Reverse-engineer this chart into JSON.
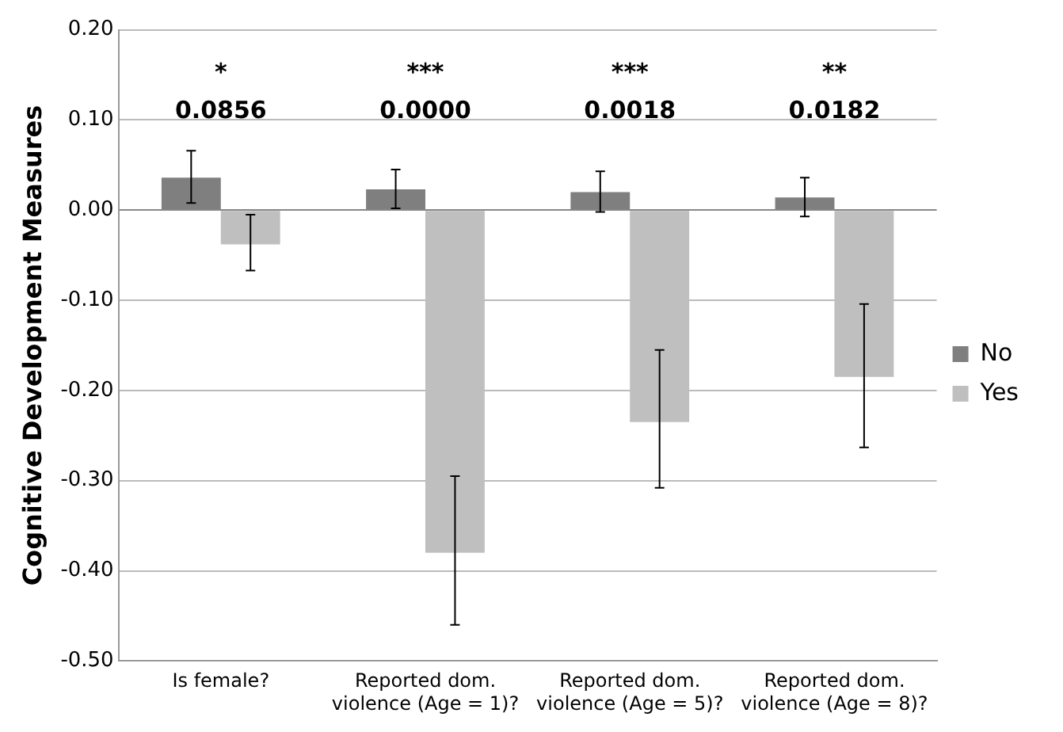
{
  "chart_data": {
    "type": "bar",
    "ylabel": "Cognitive Development Measures",
    "categories": [
      "Is female?",
      "Reported dom. violence (Age = 1)?",
      "Reported dom. violence (Age = 5)?",
      "Reported dom. violence (Age = 8)?"
    ],
    "series": [
      {
        "name": "No",
        "color": "#7f7f7f",
        "values": [
          0.036,
          0.023,
          0.02,
          0.014
        ],
        "errors": [
          [
            0.008,
            0.066
          ],
          [
            0.002,
            0.045
          ],
          [
            -0.002,
            0.043
          ],
          [
            -0.007,
            0.036
          ]
        ]
      },
      {
        "name": "Yes",
        "color": "#bfbfbf",
        "values": [
          -0.038,
          -0.38,
          -0.235,
          -0.185
        ],
        "errors": [
          [
            -0.067,
            -0.005
          ],
          [
            -0.46,
            -0.295
          ],
          [
            -0.308,
            -0.155
          ],
          [
            -0.263,
            -0.104
          ]
        ]
      }
    ],
    "ylim": [
      -0.5,
      0.2
    ],
    "yticks": [
      {
        "value": -0.5,
        "label": "-0.50"
      },
      {
        "value": -0.4,
        "label": "-0.40"
      },
      {
        "value": -0.3,
        "label": "-0.30"
      },
      {
        "value": -0.2,
        "label": "-0.20"
      },
      {
        "value": -0.1,
        "label": "-0.10"
      },
      {
        "value": 0,
        "label": "0.00"
      },
      {
        "value": 0.1,
        "label": "0.10"
      },
      {
        "value": 0.2,
        "label": "0.20"
      }
    ],
    "grid": "y",
    "legend": "right",
    "annotations": [
      "*",
      "0.0856",
      "***",
      "0.0000",
      "***",
      "0.0018",
      "**",
      "0.0182"
    ]
  }
}
